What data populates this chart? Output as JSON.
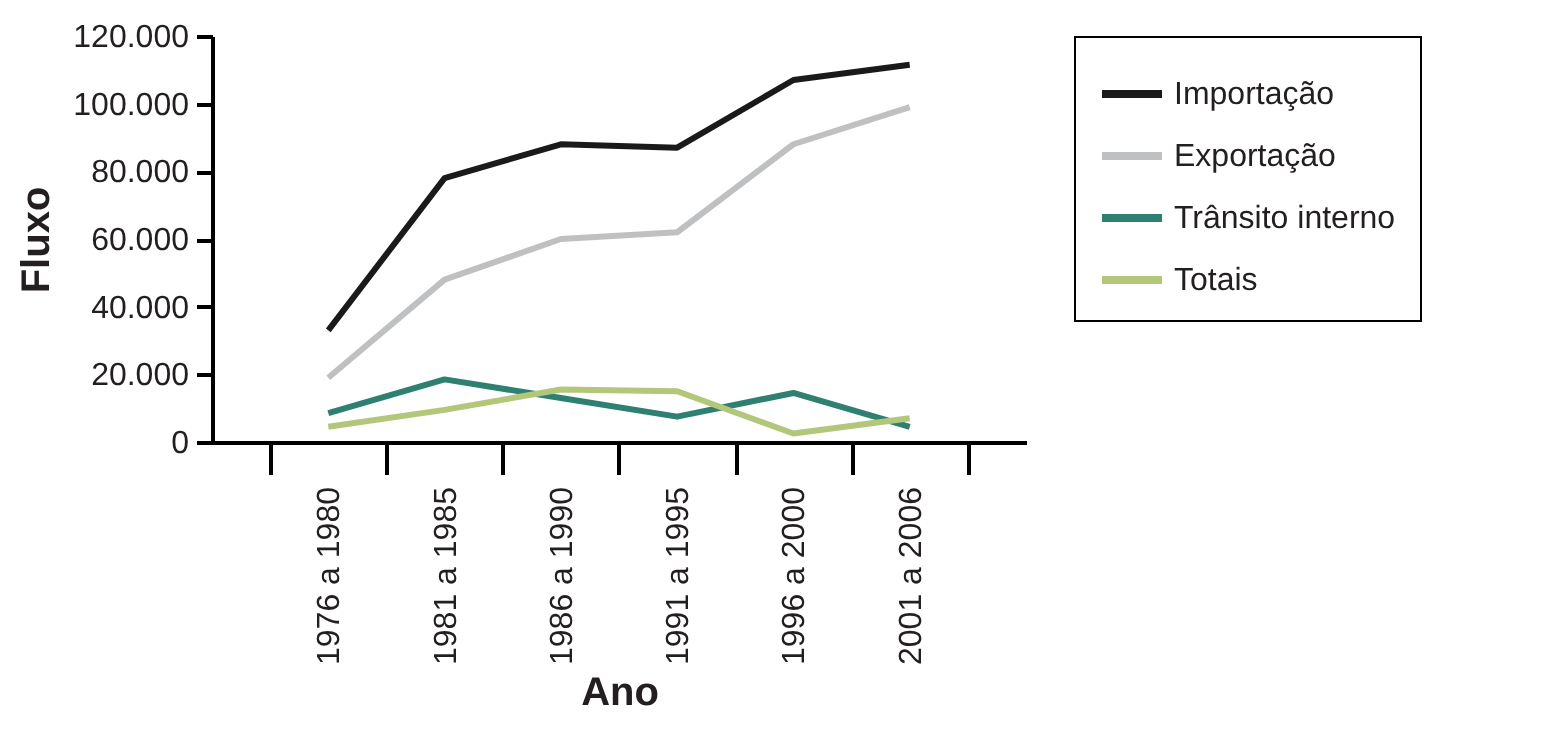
{
  "chart_data": {
    "type": "line",
    "xlabel": "Ano",
    "ylabel": "Fluxo",
    "categories": [
      "1976 a 1980",
      "1981 a 1985",
      "1986 a 1990",
      "1991 a 1995",
      "1996 a 2000",
      "2001 a 2006"
    ],
    "series": [
      {
        "name": "Importação",
        "color": "#1a1a1a",
        "values": [
          33000,
          78000,
          88000,
          87000,
          107000,
          111500
        ]
      },
      {
        "name": "Exportação",
        "color": "#bfc0c2",
        "values": [
          19000,
          48000,
          60000,
          62000,
          88000,
          99000
        ]
      },
      {
        "name": "Trânsito interno",
        "color": "#2e8070",
        "values": [
          8500,
          18500,
          13000,
          7500,
          14500,
          4500
        ]
      },
      {
        "name": "Totais",
        "color": "#b3c77a",
        "values": [
          4500,
          9500,
          15500,
          15000,
          2500,
          7000
        ]
      }
    ],
    "ylim": [
      0,
      120000
    ],
    "yticks": [
      0,
      {
        "value": 20000,
        "label": "20.000"
      },
      {
        "value": 40000,
        "label": "40.000"
      },
      {
        "value": 60000,
        "label": "60.000"
      },
      {
        "value": 80000,
        "label": "80.000"
      },
      {
        "value": 100000,
        "label": "100.000"
      },
      {
        "value": 120000,
        "label": "120.000"
      }
    ],
    "grid": false,
    "legend": "right",
    "marker": "none",
    "line_style": "solid"
  }
}
